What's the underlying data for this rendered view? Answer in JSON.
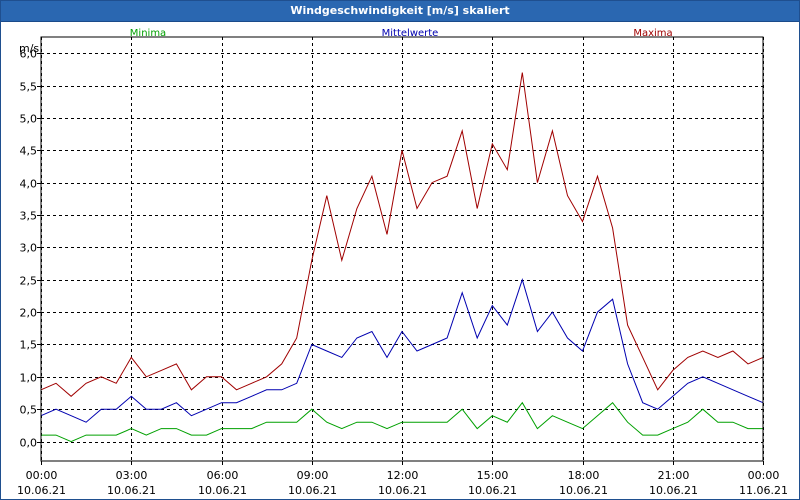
{
  "window": {
    "title": "Windgeschwindigkeit [m/s] skaliert"
  },
  "legend": [
    {
      "label": "Minima",
      "color": "#00a000"
    },
    {
      "label": "Mittelwerte",
      "color": "#0000b0"
    },
    {
      "label": "Maxima",
      "color": "#a00000"
    }
  ],
  "chart_data": {
    "type": "line",
    "title": "Windgeschwindigkeit [m/s] skaliert",
    "ylabel": "m/s",
    "xlabel": "",
    "ylim": [
      -0.3,
      6.25
    ],
    "xlim": [
      0,
      24
    ],
    "grid": true,
    "y_ticks": [
      "0,0",
      "0,5",
      "1,0",
      "1,5",
      "2,0",
      "2,5",
      "3,0",
      "3,5",
      "4,0",
      "4,5",
      "5,0",
      "5,5",
      "6,0"
    ],
    "x_ticks": [
      {
        "time": "00:00",
        "date": "10.06.21"
      },
      {
        "time": "03:00",
        "date": "10.06.21"
      },
      {
        "time": "06:00",
        "date": "10.06.21"
      },
      {
        "time": "09:00",
        "date": "10.06.21"
      },
      {
        "time": "12:00",
        "date": "10.06.21"
      },
      {
        "time": "15:00",
        "date": "10.06.21"
      },
      {
        "time": "18:00",
        "date": "10.06.21"
      },
      {
        "time": "21:00",
        "date": "10.06.21"
      },
      {
        "time": "00:00",
        "date": "11.06.21"
      }
    ],
    "x_hours": [
      0,
      0.5,
      1,
      1.5,
      2,
      2.5,
      3,
      3.5,
      4,
      4.5,
      5,
      5.5,
      6,
      6.5,
      7,
      7.5,
      8,
      8.5,
      9,
      9.5,
      10,
      10.5,
      11,
      11.5,
      12,
      12.5,
      13,
      13.5,
      14,
      14.5,
      15,
      15.5,
      16,
      16.5,
      17,
      17.5,
      18,
      18.5,
      19,
      19.5,
      20,
      20.5,
      21,
      21.5,
      22,
      22.5,
      23,
      23.5,
      24
    ],
    "series": [
      {
        "name": "Maxima",
        "color": "#a00000",
        "values": [
          0.8,
          0.9,
          0.7,
          0.9,
          1.0,
          0.9,
          1.3,
          1.0,
          1.1,
          1.2,
          0.8,
          1.0,
          1.0,
          0.8,
          0.9,
          1.0,
          1.2,
          1.6,
          2.8,
          3.8,
          2.8,
          3.6,
          4.1,
          3.2,
          4.5,
          3.6,
          4.0,
          4.1,
          4.8,
          3.6,
          4.6,
          4.2,
          5.7,
          4.0,
          4.8,
          3.8,
          3.4,
          4.1,
          3.3,
          1.8,
          1.3,
          0.8,
          1.1,
          1.3,
          1.4,
          1.3,
          1.4,
          1.2,
          1.3
        ]
      },
      {
        "name": "Mittelwerte",
        "color": "#0000b0",
        "values": [
          0.4,
          0.5,
          0.4,
          0.3,
          0.5,
          0.5,
          0.7,
          0.5,
          0.5,
          0.6,
          0.4,
          0.5,
          0.6,
          0.6,
          0.7,
          0.8,
          0.8,
          0.9,
          1.5,
          1.4,
          1.3,
          1.6,
          1.7,
          1.3,
          1.7,
          1.4,
          1.5,
          1.6,
          2.3,
          1.6,
          2.1,
          1.8,
          2.5,
          1.7,
          2.0,
          1.6,
          1.4,
          2.0,
          2.2,
          1.2,
          0.6,
          0.5,
          0.7,
          0.9,
          1.0,
          0.9,
          0.8,
          0.7,
          0.6
        ]
      },
      {
        "name": "Minima",
        "color": "#00a000",
        "values": [
          0.1,
          0.1,
          0.0,
          0.1,
          0.1,
          0.1,
          0.2,
          0.1,
          0.2,
          0.2,
          0.1,
          0.1,
          0.2,
          0.2,
          0.2,
          0.3,
          0.3,
          0.3,
          0.5,
          0.3,
          0.2,
          0.3,
          0.3,
          0.2,
          0.3,
          0.3,
          0.3,
          0.3,
          0.5,
          0.2,
          0.4,
          0.3,
          0.6,
          0.2,
          0.4,
          0.3,
          0.2,
          0.4,
          0.6,
          0.3,
          0.1,
          0.1,
          0.2,
          0.3,
          0.5,
          0.3,
          0.3,
          0.2,
          0.2
        ]
      }
    ]
  }
}
